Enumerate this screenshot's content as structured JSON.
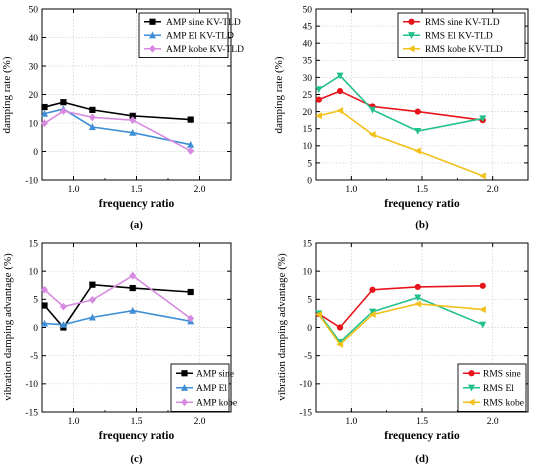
{
  "chart_data": [
    {
      "type": "line",
      "panel_label": "(a)",
      "xlabel": "frequency ratio",
      "ylabel": "damping rate (%)",
      "xlim": [
        0.75,
        2.25
      ],
      "ylim": [
        -10,
        50
      ],
      "xticks": [
        1.0,
        1.5,
        2.0
      ],
      "yticks": [
        -10,
        0,
        10,
        20,
        30,
        40,
        50
      ],
      "xtick_labels": [
        "1.0",
        "1.5",
        "2.0"
      ],
      "ytick_labels": [
        "-10",
        "0",
        "10",
        "20",
        "30",
        "40",
        "50"
      ],
      "legend_position": "top-right",
      "series": [
        {
          "name": "AMP sine KV-TLD",
          "color": "#000000",
          "marker": "square",
          "x": [
            0.77,
            0.92,
            1.15,
            1.47,
            1.93
          ],
          "y": [
            15.6,
            17.3,
            14.6,
            12.5,
            11.2
          ]
        },
        {
          "name": "AMP El KV-TLD",
          "color": "#3f8fd6",
          "marker": "triangle",
          "x": [
            0.77,
            0.92,
            1.15,
            1.47,
            1.93
          ],
          "y": [
            13.3,
            14.9,
            8.6,
            6.6,
            2.4
          ]
        },
        {
          "name": "AMP kobe KV-TLD",
          "color": "#d68be0",
          "marker": "diamond",
          "x": [
            0.77,
            0.92,
            1.15,
            1.47,
            1.93
          ],
          "y": [
            9.9,
            14.2,
            12.0,
            11.0,
            0.2
          ]
        }
      ]
    },
    {
      "type": "line",
      "panel_label": "(b)",
      "xlabel": "frequency ratio",
      "ylabel": "damping rate (%)",
      "xlim": [
        0.75,
        2.25
      ],
      "ylim": [
        0,
        50
      ],
      "xticks": [
        1.0,
        1.5,
        2.0
      ],
      "yticks": [
        0,
        5,
        10,
        15,
        20,
        25,
        30,
        35,
        40,
        45,
        50
      ],
      "xtick_labels": [
        "1.0",
        "1.5",
        "2.0"
      ],
      "ytick_labels": [
        "0",
        "5",
        "10",
        "15",
        "20",
        "25",
        "30",
        "35",
        "40",
        "45",
        "50"
      ],
      "legend_position": "top-right",
      "series": [
        {
          "name": "RMS sine KV-TLD",
          "color": "#e8141b",
          "marker": "circle",
          "x": [
            0.77,
            0.92,
            1.15,
            1.47,
            1.93
          ],
          "y": [
            23.5,
            26.0,
            21.5,
            20.0,
            17.5
          ]
        },
        {
          "name": "RMS El KV-TLD",
          "color": "#22c18c",
          "marker": "triangle-down",
          "x": [
            0.77,
            0.92,
            1.15,
            1.47,
            1.93
          ],
          "y": [
            26.5,
            30.5,
            20.5,
            14.3,
            18.0
          ]
        },
        {
          "name": "RMS kobe KV-TLD",
          "color": "#f2c11a",
          "marker": "triangle-left",
          "x": [
            0.77,
            0.92,
            1.15,
            1.47,
            1.93
          ],
          "y": [
            18.8,
            20.3,
            13.3,
            8.5,
            1.2
          ]
        }
      ]
    },
    {
      "type": "line",
      "panel_label": "(c)",
      "xlabel": "frequency ratio",
      "ylabel": "vibration damping advantage (%)",
      "xlim": [
        0.75,
        2.25
      ],
      "ylim": [
        -15,
        15
      ],
      "xticks": [
        1.0,
        1.5,
        2.0
      ],
      "yticks": [
        -15,
        -10,
        -5,
        0,
        5,
        10,
        15
      ],
      "xtick_labels": [
        "1.0",
        "1.5",
        "2.0"
      ],
      "ytick_labels": [
        "-15",
        "-10",
        "-5",
        "0",
        "5",
        "10",
        "15"
      ],
      "legend_position": "bottom-right",
      "series": [
        {
          "name": "AMP sine",
          "color": "#000000",
          "marker": "square",
          "x": [
            0.77,
            0.92,
            1.15,
            1.47,
            1.93
          ],
          "y": [
            3.9,
            0.0,
            7.6,
            7.0,
            6.3
          ]
        },
        {
          "name": "AMP El",
          "color": "#3f8fd6",
          "marker": "triangle",
          "x": [
            0.77,
            0.92,
            1.15,
            1.47,
            1.93
          ],
          "y": [
            0.7,
            0.5,
            1.8,
            3.0,
            1.1
          ]
        },
        {
          "name": "AMP kobe",
          "color": "#d68be0",
          "marker": "diamond",
          "x": [
            0.77,
            0.92,
            1.15,
            1.47,
            1.93
          ],
          "y": [
            6.7,
            3.7,
            4.9,
            9.2,
            1.6
          ]
        }
      ]
    },
    {
      "type": "line",
      "panel_label": "(d)",
      "xlabel": "frequency ratio",
      "ylabel": "vibration damping advantage (%)",
      "xlim": [
        0.75,
        2.25
      ],
      "ylim": [
        -15,
        15
      ],
      "xticks": [
        1.0,
        1.5,
        2.0
      ],
      "yticks": [
        -15,
        -10,
        -5,
        0,
        5,
        10,
        15
      ],
      "xtick_labels": [
        "1.0",
        "1.5",
        "2.0"
      ],
      "ytick_labels": [
        "-15",
        "-10",
        "-5",
        "0",
        "5",
        "10",
        "15"
      ],
      "legend_position": "bottom-right",
      "series": [
        {
          "name": "RMS sine",
          "color": "#e8141b",
          "marker": "circle",
          "x": [
            0.77,
            0.92,
            1.15,
            1.47,
            1.93
          ],
          "y": [
            2.4,
            0.0,
            6.7,
            7.2,
            7.4
          ]
        },
        {
          "name": "RMS El",
          "color": "#22c18c",
          "marker": "triangle-down",
          "x": [
            0.77,
            0.92,
            1.15,
            1.47,
            1.93
          ],
          "y": [
            2.5,
            -2.6,
            2.8,
            5.3,
            0.5
          ]
        },
        {
          "name": "RMS kobe",
          "color": "#f2c11a",
          "marker": "triangle-left",
          "x": [
            0.77,
            0.92,
            1.15,
            1.47,
            1.93
          ],
          "y": [
            2.3,
            -3.0,
            2.3,
            4.2,
            3.2
          ]
        }
      ]
    }
  ]
}
